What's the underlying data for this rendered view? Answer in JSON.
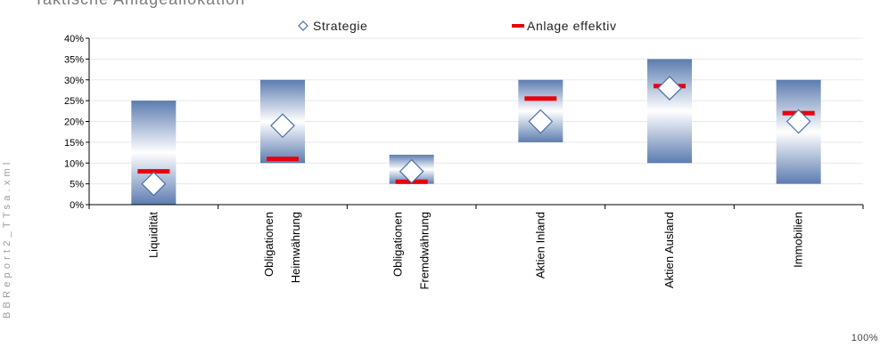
{
  "title": "Taktische Anlageallokation",
  "side_label": "BBReport2_TTsa.xml",
  "zoom_label": "100%",
  "colors": {
    "band_dark": "#5c7cb0",
    "band_light": "#ffffff",
    "marker_fill": "#ffffff",
    "marker_stroke": "#4a6fa5",
    "effective": "#e8000d",
    "grid": "#e8e8e8",
    "axis": "#000000"
  },
  "chart_data": {
    "type": "range-bar",
    "categories": [
      [
        "Liquidität"
      ],
      [
        "Obligationen",
        "Heimwährung"
      ],
      [
        "Obligationen",
        "Fremdwährung"
      ],
      [
        "Aktien Inland"
      ],
      [
        "Aktien Ausland"
      ],
      [
        "Immobilien"
      ]
    ],
    "range_min": [
      0,
      10,
      5,
      15,
      10,
      5
    ],
    "range_max": [
      25,
      30,
      12,
      30,
      35,
      30
    ],
    "series": [
      {
        "name": "Strategie",
        "marker": "diamond",
        "values": [
          5,
          19,
          8,
          20,
          28,
          20
        ]
      },
      {
        "name": "Anlage effektiv",
        "marker": "dash",
        "values": [
          8,
          11,
          5.5,
          25.5,
          28.5,
          22
        ]
      }
    ],
    "y_ticks": [
      "0%",
      "5%",
      "10%",
      "15%",
      "20%",
      "25%",
      "30%",
      "35%",
      "40%"
    ],
    "ylim": [
      0,
      40
    ],
    "legend_position": "top",
    "grid": true
  }
}
